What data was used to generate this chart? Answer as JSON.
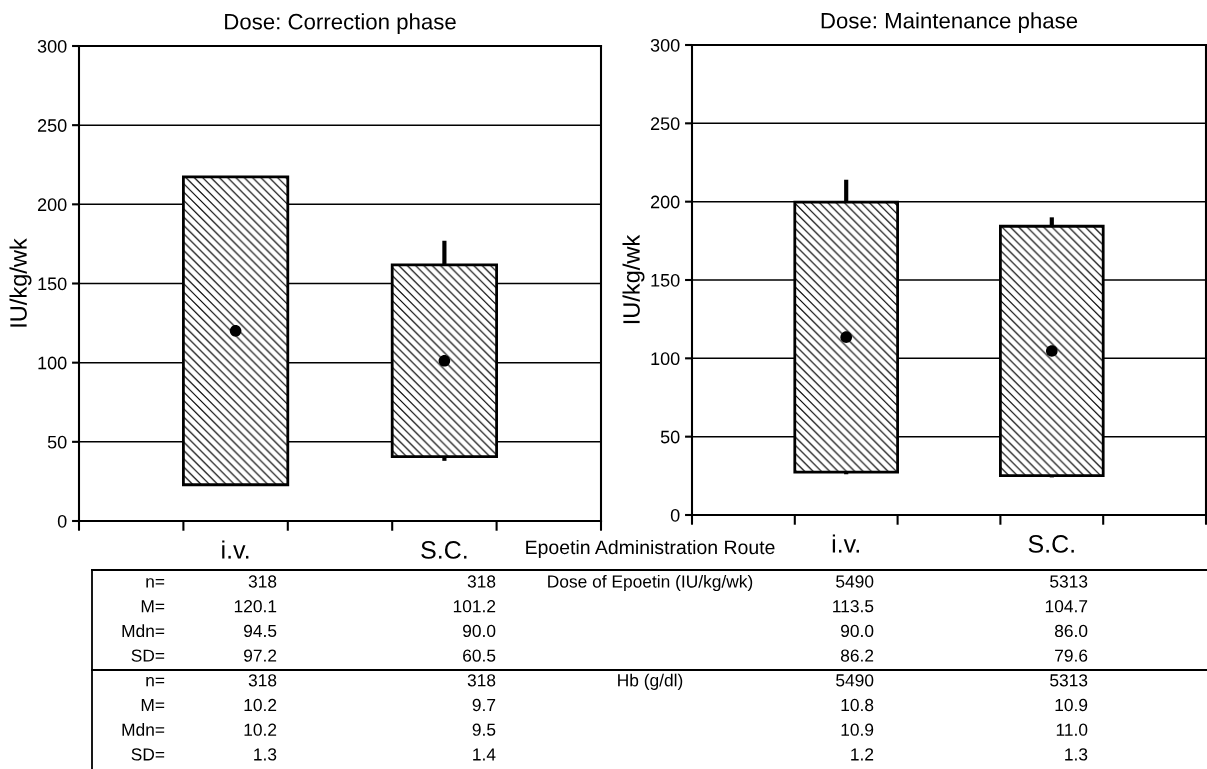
{
  "chart_data": [
    {
      "type": "candlestick",
      "title": "Dose: Correction phase",
      "ylabel": "IU/kg/wk",
      "categories": [
        null,
        "i.v.",
        null,
        "S.C.",
        null
      ],
      "color": "#000000",
      "ohlc": [
        null,
        [
          22.9,
          217.3,
          22.9,
          217.3
        ],
        null,
        [
          40.7,
          177,
          38,
          161.7
        ],
        null
      ],
      "series": [
        {
          "type": "scatter",
          "x": [
            "i.v.",
            "S.C."
          ],
          "values": [
            120.1,
            101.2
          ],
          "color": "#000000"
        }
      ],
      "marker": "circle",
      "ylim": [
        0,
        300
      ],
      "yticks": [
        0,
        50,
        100,
        150,
        200,
        250,
        300
      ],
      "grid": "y"
    },
    {
      "type": "candlestick",
      "title": "Dose: Maintenance phase",
      "ylabel": "IU/kg/wk",
      "categories": [
        null,
        "i.v.",
        null,
        "S.C.",
        null
      ],
      "color": "#000000",
      "ohlc": [
        null,
        [
          27.3,
          214,
          26,
          199.7
        ],
        null,
        [
          25.1,
          190,
          24,
          184.3
        ],
        null
      ],
      "series": [
        {
          "type": "scatter",
          "x": [
            "i.v.",
            "S.C."
          ],
          "values": [
            113.5,
            104.7
          ],
          "color": "#000000"
        }
      ],
      "marker": "circle",
      "ylim": [
        0,
        300
      ],
      "yticks": [
        0,
        50,
        100,
        150,
        200,
        250,
        300
      ],
      "grid": "y"
    },
    {
      "type": "other",
      "annotations": [
        "Epoetin Administration Route",
        "n=",
        "318",
        "318",
        "Dose of Epoetin (IU/kg/wk)",
        "5490",
        "5313",
        "M=",
        "120.1",
        "101.2",
        "113.5",
        "104.7",
        "Mdn=",
        "94.5",
        "90.0",
        "90.0",
        "86.0",
        "SD=",
        "97.2",
        "60.5",
        "86.2",
        "79.6",
        "n=",
        "318",
        "318",
        "Hb (g/dl)",
        "5490",
        "5313",
        "M=",
        "10.2",
        "9.7",
        "10.8",
        "10.9",
        "Mdn=",
        "10.2",
        "9.5",
        "10.9",
        "11.0",
        "SD=",
        "1.3",
        "1.4",
        "1.2",
        "1.3"
      ]
    }
  ]
}
